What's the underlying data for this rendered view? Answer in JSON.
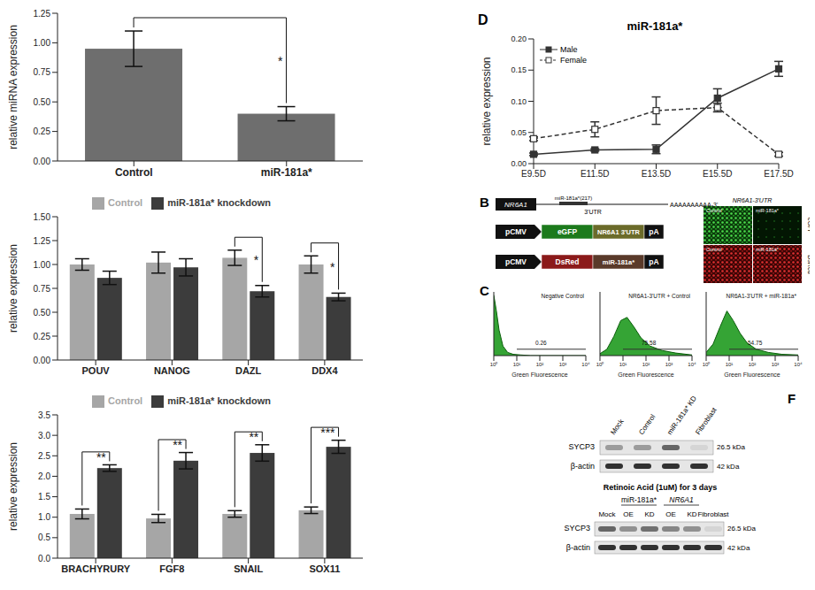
{
  "chart_data": [
    {
      "type": "bar",
      "categories": [
        "Control",
        "miR-181a*"
      ],
      "values": [
        0.95,
        0.4
      ],
      "errors": [
        0.15,
        0.06
      ],
      "color": "#6e6e6e",
      "y_label": "relative miRNA expression",
      "ylim": [
        0,
        1.25
      ],
      "yticks": [
        {
          "value": 0,
          "label": "0.00"
        },
        0.25,
        {
          "value": 0.5,
          "label": "0.50"
        },
        0.75,
        {
          "value": 1,
          "label": "1.00"
        },
        1.25
      ],
      "annotations": [
        null,
        "*"
      ]
    },
    {
      "type": "bar",
      "categories": [
        "POUV",
        "NANOG",
        "DAZL",
        "DDX4"
      ],
      "series": [
        {
          "name": "Control",
          "color": "#a6a6a6",
          "values": [
            1.0,
            1.02,
            1.07,
            1.0
          ],
          "errors": [
            0.06,
            0.11,
            0.08,
            0.09
          ]
        },
        {
          "name": "miR-181a* knockdown",
          "color": "#3c3c3c",
          "values": [
            0.86,
            0.97,
            0.72,
            0.66
          ],
          "errors": [
            0.07,
            0.09,
            0.06,
            0.04
          ]
        }
      ],
      "y_label": "relative expression",
      "ylim": [
        0,
        1.5
      ],
      "yticks": [
        {
          "value": 0,
          "label": "0.00"
        },
        0.25,
        {
          "value": 0.5,
          "label": "0.50"
        },
        0.75,
        {
          "value": 1,
          "label": "1.00"
        },
        1.25,
        {
          "value": 1.5,
          "label": "1.50"
        }
      ],
      "legend": "top",
      "annotations": [
        null,
        null,
        "*",
        "*"
      ]
    },
    {
      "type": "bar",
      "categories": [
        "BRACHYRURY",
        "FGF8",
        "SNAIL",
        "SOX11"
      ],
      "series": [
        {
          "name": "Control",
          "color": "#a6a6a6",
          "values": [
            1.08,
            0.97,
            1.08,
            1.17
          ],
          "errors": [
            0.12,
            0.1,
            0.08,
            0.08
          ]
        },
        {
          "name": "miR-181a* knockdown",
          "color": "#3c3c3c",
          "values": [
            2.2,
            2.38,
            2.57,
            2.72
          ],
          "errors": [
            0.08,
            0.2,
            0.2,
            0.16
          ]
        }
      ],
      "y_label": "relative expression",
      "ylim": [
        0,
        3.5
      ],
      "yticks": [
        {
          "value": 0,
          "label": "0.0"
        },
        0.5,
        {
          "value": 1,
          "label": "1.0"
        },
        1.5,
        {
          "value": 2,
          "label": "2.0"
        },
        2.5,
        {
          "value": 3,
          "label": "3.0"
        },
        3.5
      ],
      "legend": "top",
      "annotations": [
        "**",
        "**",
        "**",
        "***"
      ]
    },
    {
      "type": "line",
      "panel_label": "D",
      "title": "miR-181a*",
      "categories": [
        "E9.5D",
        "E11.5D",
        "E13.5D",
        "E15.5D",
        "E17.5D"
      ],
      "series": [
        {
          "name": "Male",
          "color": "#333333",
          "marker": "square",
          "line_style": "solid",
          "values": [
            0.015,
            0.022,
            0.023,
            0.105,
            0.152
          ],
          "errors": [
            0.002,
            0.002,
            0.007,
            0.015,
            0.012
          ]
        },
        {
          "name": "Female",
          "color": "#333333",
          "marker": "square-open",
          "line_style": "dashed",
          "values": [
            0.04,
            0.055,
            0.085,
            0.09,
            0.015
          ],
          "errors": [
            0.003,
            0.012,
            0.022,
            0.007,
            0.003
          ]
        }
      ],
      "y_label": "relative expression",
      "ylim": [
        0,
        0.2
      ],
      "yticks": [
        {
          "value": 0,
          "label": "0.00"
        },
        0.05,
        {
          "value": 0.1,
          "label": "0.10"
        },
        0.15,
        {
          "value": 0.2,
          "label": "0.20"
        }
      ],
      "legend": "upper left"
    },
    {
      "type": "area",
      "panel_label": "C",
      "title": "Negative Control",
      "x_label": "Green Fluorescence",
      "log": "x",
      "color": "#1f9a1f",
      "x": [
        1,
        1.3,
        1.7,
        2.5,
        4,
        7,
        15,
        40,
        100,
        1000,
        10000
      ],
      "values": [
        95,
        70,
        40,
        15,
        5,
        2,
        1,
        0,
        0,
        0,
        0
      ],
      "xlim": [
        1,
        10000
      ],
      "xticks": [
        {
          "value": 1,
          "label": "10⁰"
        },
        {
          "value": 10,
          "label": "10¹"
        },
        {
          "value": 100,
          "label": "10²"
        },
        {
          "value": 1000,
          "label": "10³"
        },
        {
          "value": 10000,
          "label": "10⁴"
        }
      ],
      "ylim": [
        0,
        100
      ],
      "tick_labels": "x",
      "gate": [
        10,
        10000
      ],
      "gate_label": "0.26"
    },
    {
      "type": "area",
      "title": "NR6A1-3'UTR + Control",
      "x_label": "Green Fluorescence",
      "log": "x",
      "color": "#1f9a1f",
      "x": [
        1,
        2,
        4,
        8,
        15,
        30,
        60,
        150,
        500,
        2000,
        10000
      ],
      "values": [
        3,
        10,
        30,
        55,
        60,
        45,
        28,
        15,
        8,
        4,
        1
      ],
      "xlim": [
        1,
        10000
      ],
      "xticks": [
        {
          "value": 1,
          "label": "10⁰"
        },
        {
          "value": 10,
          "label": "10¹"
        },
        {
          "value": 100,
          "label": "10²"
        },
        {
          "value": 1000,
          "label": "10³"
        },
        {
          "value": 10000,
          "label": "10⁴"
        }
      ],
      "ylim": [
        0,
        100
      ],
      "tick_labels": "x",
      "gate": [
        10,
        10000
      ],
      "gate_label": "75.58"
    },
    {
      "type": "area",
      "title": "NR6A1-3'UTR + miR-181a*",
      "x_label": "Green Fluorescence",
      "log": "x",
      "color": "#1f9a1f",
      "x": [
        1,
        2,
        4,
        8,
        15,
        30,
        60,
        150,
        500,
        2000,
        10000
      ],
      "values": [
        5,
        18,
        45,
        70,
        55,
        35,
        20,
        10,
        5,
        2,
        1
      ],
      "xlim": [
        1,
        10000
      ],
      "xticks": [
        {
          "value": 1,
          "label": "10⁰"
        },
        {
          "value": 10,
          "label": "10¹"
        },
        {
          "value": 100,
          "label": "10²"
        },
        {
          "value": 1000,
          "label": "10³"
        },
        {
          "value": 10000,
          "label": "10⁴"
        }
      ],
      "ylim": [
        0,
        100
      ],
      "tick_labels": "x",
      "gate": [
        10,
        10000
      ],
      "gate_label": "54.75"
    }
  ],
  "diagram_B": {
    "panel_label": "B",
    "gene": "NR6A1",
    "site": "miR-181a*(217)",
    "utr": "3'UTR",
    "polyA": "AAAAAAAAAA-3'",
    "constructs": [
      [
        "pCMV",
        "eGFP",
        "NR6A1 3'UTR",
        "pA"
      ],
      [
        "pCMV",
        "DsRed",
        "miR-181a*",
        "pA"
      ]
    ],
    "image_title": "NR6A1-3'UTR",
    "image_cols": [
      "Control",
      "miR-181a*"
    ],
    "image_rows": [
      "eGFP",
      "DsRed"
    ]
  },
  "blot_F": {
    "panel_label": "F",
    "top": {
      "lanes": [
        "Mock",
        "Control",
        "miR-181a* KD",
        "Fibroblast"
      ],
      "rows": [
        {
          "name": "SYCP3",
          "size": "26.5 kDa"
        },
        {
          "name": "β-actin",
          "size": "42 kDa"
        }
      ]
    },
    "bottom": {
      "title": "Retinoic Acid (1uM) for 3 days",
      "groups": [
        {
          "name": "miR-181a*",
          "lanes": [
            "OE",
            "KD"
          ]
        },
        {
          "name": "NR6A1",
          "lanes": [
            "OE",
            "KD"
          ]
        }
      ],
      "lanes": [
        "Mock",
        "OE",
        "KD",
        "OE",
        "KD",
        "Fibroblast"
      ],
      "rows": [
        {
          "name": "SYCP3",
          "size": "26.5 kDa"
        },
        {
          "name": "β-actin",
          "size": "42 kDa"
        }
      ]
    }
  }
}
